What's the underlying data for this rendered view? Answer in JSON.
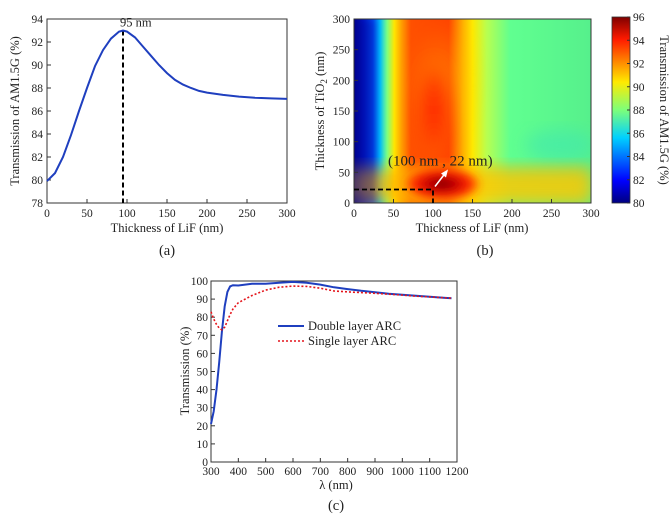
{
  "colors": {
    "axis": "#333333",
    "curve_a": "#1f3fbf",
    "double_layer": "#1f3fbf",
    "single_layer": "#e4141b",
    "annotation": "#000000",
    "arrow": "#ffffff"
  },
  "chart_data": [
    {
      "panel_label": "(a)",
      "type": "line",
      "xlabel": "Thickness of LiF (nm)",
      "ylabel": "Transmission of AM1.5G (%)",
      "xlim": [
        0,
        300
      ],
      "ylim": [
        78,
        94
      ],
      "xticks": [
        0,
        50,
        100,
        150,
        200,
        250,
        300
      ],
      "yticks": [
        78,
        80,
        82,
        84,
        86,
        88,
        90,
        92,
        94
      ],
      "grid": false,
      "x": [
        0,
        10,
        20,
        30,
        40,
        50,
        60,
        70,
        80,
        90,
        95,
        100,
        110,
        120,
        130,
        140,
        150,
        160,
        170,
        180,
        190,
        200,
        220,
        240,
        260,
        280,
        300
      ],
      "y": [
        79.9,
        80.6,
        82.0,
        83.9,
        86.0,
        88.0,
        89.9,
        91.3,
        92.3,
        92.9,
        93.0,
        92.9,
        92.4,
        91.6,
        90.8,
        90.0,
        89.3,
        88.7,
        88.3,
        88.0,
        87.75,
        87.6,
        87.4,
        87.25,
        87.15,
        87.1,
        87.05
      ],
      "annotations": [
        {
          "text": "95 nm",
          "x": 95,
          "y": 93.0,
          "marker": "dashed vertical line to x-axis"
        }
      ]
    },
    {
      "panel_label": "(b)",
      "type": "heatmap",
      "xlabel": "Thickness of LiF (nm)",
      "ylabel_parts": {
        "main": "Thickness of TiO",
        "sub": "2",
        "tail": " (nm)"
      },
      "colorbar_label": "Transmission of AM1.5G (%)",
      "xlim": [
        0,
        300
      ],
      "ylim": [
        0,
        300
      ],
      "xticks": [
        0,
        50,
        100,
        150,
        200,
        250,
        300
      ],
      "yticks": [
        0,
        50,
        100,
        150,
        200,
        250,
        300
      ],
      "color_range": [
        80,
        96
      ],
      "colorbar_ticks": [
        80,
        82,
        84,
        86,
        88,
        90,
        92,
        94,
        96
      ],
      "colormap": "jet",
      "annotations": [
        {
          "text": "(100 nm , 22 nm)",
          "x": 100,
          "y": 22,
          "marker": "dashed guide lines and arrow"
        }
      ]
    },
    {
      "panel_label": "(c)",
      "type": "line",
      "xlabel": "λ (nm)",
      "ylabel": "Transmission (%)",
      "xlim": [
        300,
        1200
      ],
      "ylim": [
        0,
        100
      ],
      "xticks": [
        300,
        400,
        500,
        600,
        700,
        800,
        900,
        1000,
        1100,
        1200
      ],
      "yticks": [
        0,
        10,
        20,
        30,
        40,
        50,
        60,
        70,
        80,
        90,
        100
      ],
      "grid": false,
      "legend_position": "center-left",
      "series": [
        {
          "name": "Double layer ARC",
          "style": "solid",
          "x": [
            300,
            310,
            320,
            330,
            340,
            350,
            360,
            370,
            380,
            400,
            450,
            500,
            550,
            600,
            650,
            700,
            750,
            800,
            850,
            900,
            950,
            1000,
            1050,
            1100,
            1150,
            1180
          ],
          "y": [
            21,
            28,
            40,
            55,
            72,
            86,
            94,
            97,
            97.7,
            97.5,
            98.5,
            98.5,
            99.0,
            99.5,
            99.0,
            98.0,
            96.5,
            95.5,
            94.6,
            93.8,
            93.0,
            92.4,
            91.8,
            91.3,
            90.8,
            90.5
          ]
        },
        {
          "name": "Single layer ARC",
          "style": "dotted",
          "x": [
            300,
            310,
            320,
            330,
            340,
            350,
            360,
            370,
            380,
            400,
            450,
            500,
            550,
            600,
            650,
            700,
            750,
            800,
            850,
            900,
            950,
            1000,
            1050,
            1100,
            1150,
            1180
          ],
          "y": [
            83,
            79,
            76,
            74,
            73,
            74.5,
            78,
            81.5,
            84.5,
            88,
            92,
            95,
            96.6,
            97.2,
            97.0,
            96.0,
            94.5,
            94.0,
            93.6,
            93.2,
            92.7,
            92.2,
            91.6,
            91.2,
            90.8,
            90.5
          ]
        }
      ]
    }
  ]
}
